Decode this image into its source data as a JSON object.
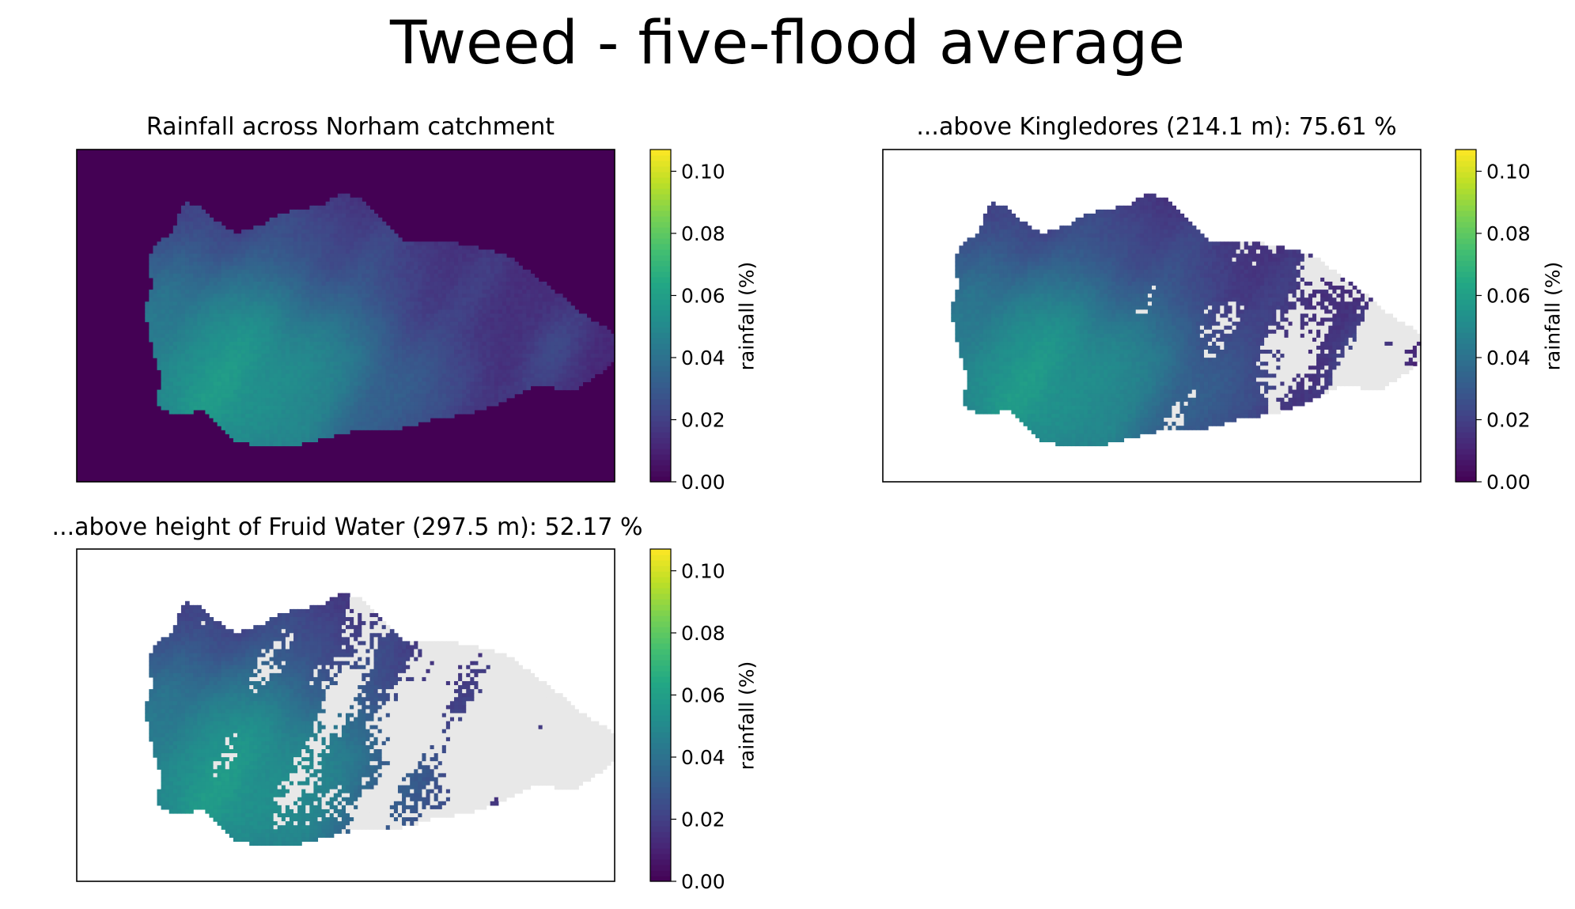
{
  "suptitle": "Tweed - five-flood average",
  "chart_data": [
    {
      "type": "heatmap",
      "title": "Rainfall across Norham catchment",
      "colorbar": {
        "label": "rainfall (%)",
        "ticks": [
          "0.00",
          "0.02",
          "0.04",
          "0.06",
          "0.08",
          "0.10"
        ],
        "range": [
          0,
          0.107
        ],
        "colormap": "viridis"
      },
      "masked_color": "none",
      "grid": false,
      "axes_ticks": false
    },
    {
      "type": "heatmap",
      "title": "...above Kingledores (214.1 m): 75.61 %",
      "colorbar": {
        "label": "rainfall (%)",
        "ticks": [
          "0.00",
          "0.02",
          "0.04",
          "0.06",
          "0.08",
          "0.10"
        ],
        "range": [
          0,
          0.107
        ],
        "colormap": "viridis"
      },
      "masked_color": "#e8e8e8",
      "grid": false,
      "axes_ticks": false
    },
    {
      "type": "heatmap",
      "title": "...above height of Fruid Water (297.5 m): 52.17 %",
      "colorbar": {
        "label": "rainfall (%)",
        "ticks": [
          "0.00",
          "0.02",
          "0.04",
          "0.06",
          "0.08",
          "0.10"
        ],
        "range": [
          0,
          0.107
        ],
        "colormap": "viridis"
      },
      "masked_color": "#e8e8e8",
      "grid": false,
      "axes_ticks": false
    }
  ]
}
